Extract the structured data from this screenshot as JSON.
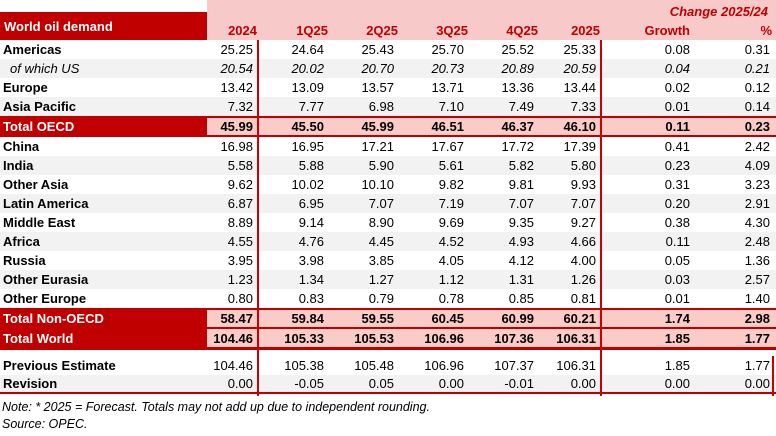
{
  "title": "World oil demand",
  "header": {
    "change_label": "Change 2025/24",
    "columns": [
      "2024",
      "1Q25",
      "2Q25",
      "3Q25",
      "4Q25",
      "2025",
      "Growth",
      "%"
    ]
  },
  "rows": [
    {
      "label": "Americas",
      "kind": "region",
      "shaded": false,
      "values": [
        "25.25",
        "24.64",
        "25.43",
        "25.70",
        "25.52",
        "25.33",
        "0.08",
        "0.31"
      ]
    },
    {
      "label": "of which US",
      "kind": "sub",
      "shaded": true,
      "values": [
        "20.54",
        "20.02",
        "20.70",
        "20.73",
        "20.89",
        "20.59",
        "0.04",
        "0.21"
      ]
    },
    {
      "label": "Europe",
      "kind": "region",
      "shaded": false,
      "values": [
        "13.42",
        "13.09",
        "13.57",
        "13.71",
        "13.36",
        "13.44",
        "0.02",
        "0.12"
      ]
    },
    {
      "label": "Asia Pacific",
      "kind": "region",
      "shaded": true,
      "values": [
        "7.32",
        "7.77",
        "6.98",
        "7.10",
        "7.49",
        "7.33",
        "0.01",
        "0.14"
      ]
    },
    {
      "label": "Total OECD",
      "kind": "total",
      "shaded": false,
      "borders": "tb",
      "values": [
        "45.99",
        "45.50",
        "45.99",
        "46.51",
        "46.37",
        "46.10",
        "0.11",
        "0.23"
      ]
    },
    {
      "label": "China",
      "kind": "region",
      "shaded": false,
      "values": [
        "16.98",
        "16.95",
        "17.21",
        "17.67",
        "17.72",
        "17.39",
        "0.41",
        "2.42"
      ]
    },
    {
      "label": "India",
      "kind": "region",
      "shaded": true,
      "values": [
        "5.58",
        "5.88",
        "5.90",
        "5.61",
        "5.82",
        "5.80",
        "0.23",
        "4.09"
      ]
    },
    {
      "label": "Other Asia",
      "kind": "region",
      "shaded": false,
      "values": [
        "9.62",
        "10.02",
        "10.10",
        "9.82",
        "9.81",
        "9.93",
        "0.31",
        "3.23"
      ]
    },
    {
      "label": "Latin America",
      "kind": "region",
      "shaded": true,
      "values": [
        "6.87",
        "6.95",
        "7.07",
        "7.19",
        "7.07",
        "7.07",
        "0.20",
        "2.91"
      ]
    },
    {
      "label": "Middle East",
      "kind": "region",
      "shaded": false,
      "values": [
        "8.89",
        "9.14",
        "8.90",
        "9.69",
        "9.35",
        "9.27",
        "0.38",
        "4.30"
      ]
    },
    {
      "label": "Africa",
      "kind": "region",
      "shaded": true,
      "values": [
        "4.55",
        "4.76",
        "4.45",
        "4.52",
        "4.93",
        "4.66",
        "0.11",
        "2.48"
      ]
    },
    {
      "label": "Russia",
      "kind": "region",
      "shaded": false,
      "values": [
        "3.95",
        "3.98",
        "3.85",
        "4.05",
        "4.12",
        "4.00",
        "0.05",
        "1.36"
      ]
    },
    {
      "label": "Other Eurasia",
      "kind": "region",
      "shaded": true,
      "values": [
        "1.23",
        "1.34",
        "1.27",
        "1.12",
        "1.31",
        "1.26",
        "0.03",
        "2.57"
      ]
    },
    {
      "label": "Other Europe",
      "kind": "region",
      "shaded": false,
      "values": [
        "0.80",
        "0.83",
        "0.79",
        "0.78",
        "0.85",
        "0.81",
        "0.01",
        "1.40"
      ]
    },
    {
      "label": "Total Non-OECD",
      "kind": "total",
      "shaded": false,
      "borders": "tb",
      "values": [
        "58.47",
        "59.84",
        "59.55",
        "60.45",
        "60.99",
        "60.21",
        "1.74",
        "2.98"
      ]
    },
    {
      "label": "Total World",
      "kind": "total",
      "shaded": false,
      "borders": "B",
      "values": [
        "104.46",
        "105.33",
        "105.53",
        "106.96",
        "107.36",
        "106.31",
        "1.85",
        "1.77"
      ]
    },
    {
      "label": "Previous Estimate",
      "kind": "estimate",
      "shaded": false,
      "gap_before": true,
      "values": [
        "104.46",
        "105.38",
        "105.48",
        "106.96",
        "107.37",
        "106.31",
        "1.85",
        "1.77"
      ]
    },
    {
      "label": "Revision",
      "kind": "estimate",
      "shaded": true,
      "borders": "b",
      "values": [
        "0.00",
        "-0.05",
        "0.05",
        "0.00",
        "-0.01",
        "0.00",
        "0.00",
        "0.00"
      ]
    }
  ],
  "notes": {
    "note": "Note: * 2025 = Forecast. Totals may not add up due to independent rounding.",
    "source": "Source: OPEC."
  },
  "colors": {
    "brand_red": "#C00000",
    "header_pink": "#F8C9C9",
    "total_pink": "#FACCC8",
    "stripe_gray": "#F2F2F2",
    "rule_red": "#CC0000"
  }
}
